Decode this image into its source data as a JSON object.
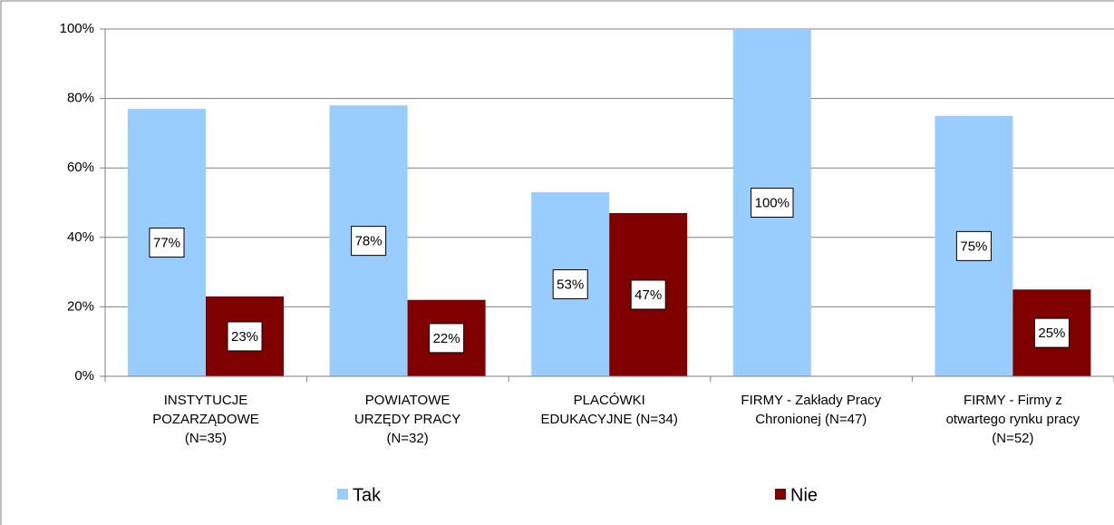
{
  "chart_data": {
    "type": "bar",
    "categories": [
      "INSTYTUCJE\nPOZARZĄDOWE\n(N=35)",
      "POWIATOWE\nURZĘDY PRACY\n(N=32)",
      "PLACÓWKI\nEDUKACYJNE (N=34)",
      "FIRMY - Zakłady Pracy\nChronionej (N=47)",
      "FIRMY - Firmy z\notwartego rynku pracy\n(N=52)"
    ],
    "series": [
      {
        "name": "Tak",
        "color": "#99ccff",
        "values": [
          77,
          78,
          53,
          100,
          75
        ],
        "value_labels": [
          "77%",
          "78%",
          "53%",
          "100%",
          "75%"
        ]
      },
      {
        "name": "Nie",
        "color": "#800000",
        "values": [
          23,
          22,
          47,
          null,
          25
        ],
        "value_labels": [
          "23%",
          "22%",
          "47%",
          null,
          "25%"
        ]
      }
    ],
    "ylim": [
      0,
      100
    ],
    "yticks": [
      {
        "value": 0,
        "label": "0%"
      },
      {
        "value": 20,
        "label": "20%"
      },
      {
        "value": 40,
        "label": "40%"
      },
      {
        "value": 60,
        "label": "60%"
      },
      {
        "value": 80,
        "label": "80%"
      },
      {
        "value": 100,
        "label": "100%"
      }
    ],
    "grid": true
  }
}
